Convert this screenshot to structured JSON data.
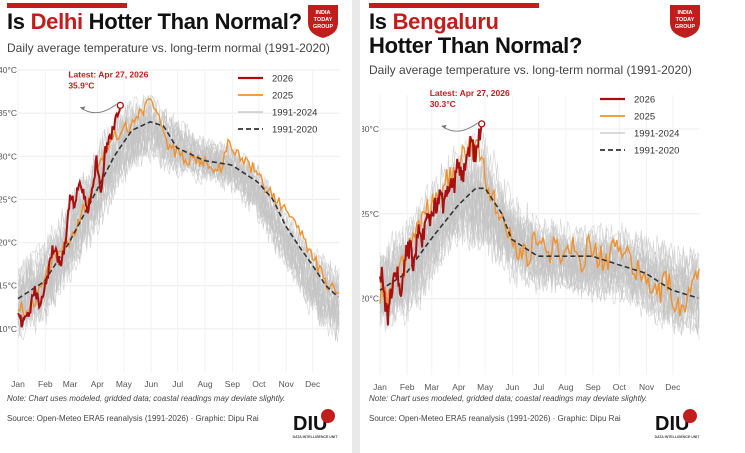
{
  "panels": [
    {
      "title_prefix": "Is ",
      "title_highlight": "Delhi",
      "title_suffix": " Hotter Than Normal?",
      "subtitle": "Daily average temperature vs. long-term normal (1991-2020)",
      "latest_label": "Latest: Apr 27, 2026",
      "latest_value": "35.9°C",
      "note": "Note: Chart uses modeled, gridded data; coastal readings may deviate slightly.",
      "source": "Source: Open-Meteo ERA5 reanalysis (1991-2026) · Graphic: Dipu Rai"
    },
    {
      "title_prefix": "Is ",
      "title_highlight": "Bengaluru",
      "title_line2": "Hotter Than Normal?",
      "subtitle": "Daily average temperature vs. long-term normal (1991-2020)",
      "latest_label": "Latest: Apr 27, 2026",
      "latest_value": "30.3°C",
      "note": "Note: Chart uses modeled, gridded data; coastal readings may deviate slightly.",
      "source": "Source: Open-Meteo ERA5 reanalysis (1991-2026) · Graphic: Dipu Rai"
    }
  ],
  "logo": {
    "line1": "INDIA",
    "line2": "TODAY",
    "line3": "GROUP"
  },
  "diu": {
    "mark": "DIU",
    "tagline": "DATA INTELLIGENCE UNIT"
  },
  "colors": {
    "series_2026": "#a81010",
    "series_2025": "#f0912d",
    "series_hist": "#c4c4c4",
    "series_normal": "#333333",
    "accent": "#c21d1d"
  },
  "chart_data": [
    {
      "type": "line",
      "title": "Is Delhi Hotter Than Normal?",
      "ylabel": "",
      "y_unit": "°C",
      "ylim": [
        5,
        40
      ],
      "y_ticks": [
        10,
        15,
        20,
        25,
        30,
        35,
        40
      ],
      "y_tick_labels": [
        "10°C",
        "15°C",
        "20°C",
        "25°C",
        "30°C",
        "35°C",
        "40°C"
      ],
      "x_tick_labels": [
        "Jan",
        "Feb",
        "Mar",
        "Apr",
        "May",
        "Jun",
        "Jul",
        "Aug",
        "Sep",
        "Oct",
        "Nov",
        "Dec"
      ],
      "x_ticks": [
        1,
        32,
        60,
        91,
        121,
        152,
        182,
        213,
        244,
        274,
        305,
        335
      ],
      "xlim": [
        1,
        366
      ],
      "legend_position": "top-right",
      "grid": true,
      "annotation": {
        "text": "Latest: Apr 27, 2026",
        "value_text": "35.9°C",
        "x": 117,
        "y": 35.9
      },
      "series": [
        {
          "name": "2026",
          "x": [
            1,
            5,
            10,
            15,
            20,
            25,
            30,
            35,
            40,
            45,
            50,
            55,
            60,
            65,
            70,
            75,
            80,
            85,
            90,
            95,
            100,
            105,
            110,
            113,
            117
          ],
          "y": [
            12.5,
            10.5,
            11.5,
            12.5,
            14.5,
            13.0,
            14.5,
            16.0,
            19.5,
            18.5,
            17.5,
            20.0,
            25.5,
            24.5,
            27.0,
            26.0,
            23.5,
            26.0,
            29.5,
            26.0,
            30.5,
            32.0,
            33.5,
            34.5,
            35.9
          ]
        },
        {
          "name": "2025",
          "x": [
            1,
            10,
            20,
            30,
            40,
            50,
            60,
            70,
            80,
            90,
            100,
            110,
            120,
            130,
            140,
            150,
            160,
            170,
            180,
            190,
            200,
            210,
            220,
            230,
            240,
            250,
            260,
            270,
            280,
            290,
            300,
            310,
            320,
            330,
            340,
            350,
            360,
            366
          ],
          "y": [
            13.0,
            12.0,
            13.5,
            15.0,
            18.5,
            19.0,
            20.5,
            22.5,
            25.0,
            28.0,
            31.0,
            32.5,
            33.0,
            33.5,
            35.0,
            36.5,
            35.0,
            31.0,
            30.5,
            29.5,
            30.0,
            29.5,
            29.0,
            28.5,
            31.5,
            30.0,
            29.0,
            28.5,
            26.5,
            25.5,
            24.0,
            23.5,
            21.0,
            19.5,
            17.5,
            15.5,
            14.5,
            14.0
          ]
        },
        {
          "name": "1991-2024",
          "x": [
            1,
            31,
            59,
            90,
            120,
            151,
            181,
            212,
            243,
            273,
            304,
            334,
            366
          ],
          "y_min": [
            7.5,
            9.5,
            14.0,
            20.0,
            26.0,
            28.5,
            27.0,
            26.5,
            25.5,
            22.0,
            16.0,
            10.5,
            7.0
          ],
          "y_max": [
            18.5,
            22.0,
            27.0,
            33.0,
            37.5,
            38.5,
            35.5,
            33.0,
            32.5,
            30.0,
            25.0,
            21.0,
            18.5
          ]
        },
        {
          "name": "1991-2020",
          "x": [
            1,
            31,
            59,
            90,
            110,
            130,
            151,
            166,
            181,
            212,
            243,
            273,
            290,
            304,
            320,
            334,
            350,
            366
          ],
          "y": [
            13.5,
            15.5,
            20.0,
            26.0,
            30.0,
            33.0,
            34.0,
            33.5,
            31.0,
            29.5,
            29.0,
            27.0,
            25.0,
            22.0,
            19.5,
            17.5,
            15.0,
            13.5
          ]
        }
      ]
    },
    {
      "type": "line",
      "title": "Is Bengaluru Hotter Than Normal?",
      "ylabel": "",
      "y_unit": "°C",
      "ylim": [
        15.5,
        32
      ],
      "y_ticks": [
        20,
        25,
        30
      ],
      "y_tick_labels": [
        "20°C",
        "25°C",
        "30°C"
      ],
      "x_tick_labels": [
        "Jan",
        "Feb",
        "Mar",
        "Apr",
        "May",
        "Jun",
        "Jul",
        "Aug",
        "Sep",
        "Oct",
        "Nov",
        "Dec"
      ],
      "x_ticks": [
        1,
        32,
        60,
        91,
        121,
        152,
        182,
        213,
        244,
        274,
        305,
        335
      ],
      "xlim": [
        1,
        366
      ],
      "legend_position": "top-right",
      "grid": true,
      "annotation": {
        "text": "Latest: Apr 27, 2026",
        "value_text": "30.3°C",
        "x": 117,
        "y": 30.3
      },
      "series": [
        {
          "name": "2026",
          "x": [
            1,
            5,
            10,
            15,
            20,
            25,
            30,
            35,
            40,
            45,
            50,
            55,
            60,
            65,
            70,
            75,
            80,
            85,
            90,
            95,
            100,
            105,
            110,
            113,
            117
          ],
          "y": [
            22.0,
            20.5,
            19.0,
            20.5,
            21.5,
            20.5,
            22.5,
            23.0,
            22.0,
            24.0,
            23.5,
            25.0,
            24.5,
            25.5,
            26.0,
            25.5,
            27.0,
            26.5,
            28.0,
            27.0,
            28.5,
            29.0,
            28.5,
            29.5,
            30.3
          ]
        },
        {
          "name": "2025",
          "x": [
            1,
            10,
            20,
            30,
            40,
            50,
            60,
            70,
            80,
            90,
            100,
            110,
            120,
            130,
            140,
            150,
            160,
            170,
            180,
            190,
            200,
            210,
            220,
            230,
            240,
            250,
            260,
            270,
            280,
            290,
            300,
            310,
            320,
            330,
            340,
            350,
            360,
            366
          ],
          "y": [
            20.5,
            20.0,
            21.5,
            22.0,
            24.0,
            25.0,
            25.5,
            26.5,
            27.0,
            28.0,
            28.5,
            29.0,
            27.5,
            26.0,
            25.0,
            23.5,
            23.0,
            22.5,
            23.5,
            22.5,
            23.0,
            22.5,
            23.0,
            22.0,
            23.5,
            22.5,
            22.0,
            23.0,
            22.5,
            22.0,
            21.5,
            21.0,
            20.5,
            21.0,
            19.5,
            20.0,
            21.5,
            22.0
          ]
        },
        {
          "name": "1991-2024",
          "x": [
            1,
            31,
            59,
            90,
            120,
            151,
            181,
            212,
            243,
            273,
            304,
            334,
            366
          ],
          "y_min": [
            17.5,
            18.0,
            20.0,
            22.5,
            22.0,
            20.5,
            20.0,
            20.0,
            19.5,
            19.5,
            18.5,
            17.5,
            17.0
          ],
          "y_max": [
            24.0,
            25.5,
            28.0,
            30.0,
            30.5,
            27.0,
            25.5,
            25.0,
            25.0,
            25.0,
            24.5,
            24.0,
            24.0
          ]
        },
        {
          "name": "1991-2020",
          "x": [
            1,
            31,
            59,
            90,
            110,
            121,
            140,
            151,
            181,
            212,
            243,
            273,
            304,
            334,
            366
          ],
          "y": [
            20.5,
            21.5,
            23.5,
            25.5,
            26.5,
            26.5,
            25.0,
            23.5,
            22.5,
            22.5,
            22.5,
            22.0,
            21.5,
            20.5,
            20.0
          ]
        }
      ]
    }
  ]
}
